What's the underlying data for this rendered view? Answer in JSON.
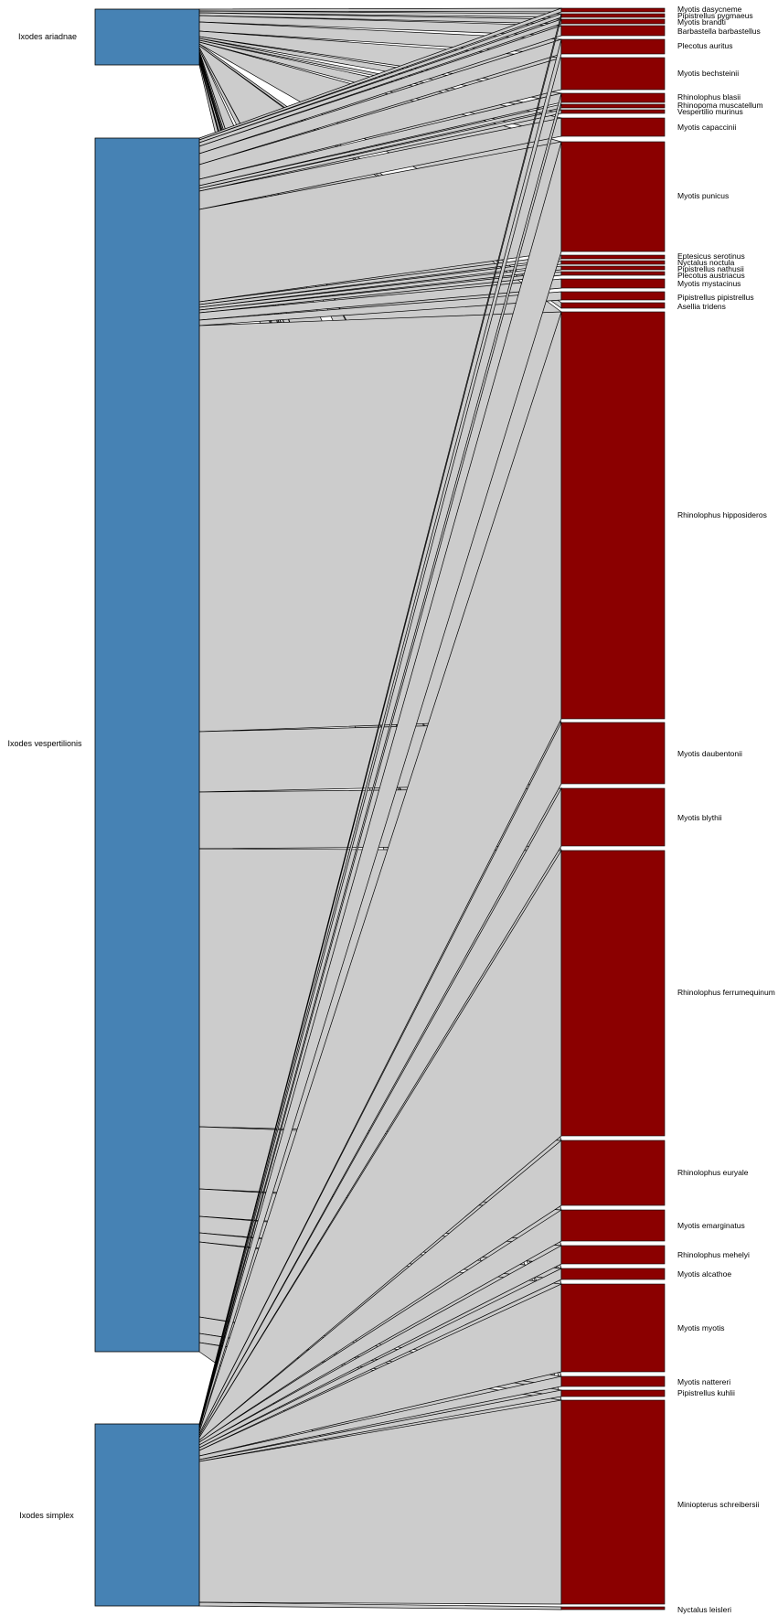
{
  "colors": {
    "higher": "#4682B4",
    "lower": "#8B0000",
    "link_fill": "#CCCCCC",
    "link_stroke": "#000000",
    "background": "#FFFFFF"
  },
  "higher_level": [
    {
      "id": "h0",
      "name": "Ixodes ariadnae"
    },
    {
      "id": "h1",
      "name": "Ixodes vespertilionis"
    },
    {
      "id": "h2",
      "name": "Ixodes simplex"
    }
  ],
  "lower_level": [
    {
      "id": "l0",
      "name": "Myotis dasycneme"
    },
    {
      "id": "l1",
      "name": "Pipistrellus pygmaeus"
    },
    {
      "id": "l2",
      "name": "Myotis brandti"
    },
    {
      "id": "l3",
      "name": "Barbastella barbastellus"
    },
    {
      "id": "l4",
      "name": "Plecotus auritus"
    },
    {
      "id": "l5",
      "name": "Myotis bechsteinii"
    },
    {
      "id": "l6",
      "name": "Rhinolophus blasii"
    },
    {
      "id": "l7",
      "name": "Rhinopoma muscatellum"
    },
    {
      "id": "l8",
      "name": "Vespertilio murinus"
    },
    {
      "id": "l9",
      "name": "Myotis capaccinii"
    },
    {
      "id": "l10",
      "name": "Myotis punicus"
    },
    {
      "id": "l11",
      "name": "Eptesicus serotinus"
    },
    {
      "id": "l12",
      "name": "Nyctalus noctula"
    },
    {
      "id": "l13",
      "name": "Pipistrellus nathusii"
    },
    {
      "id": "l14",
      "name": "Plecotus austriacus"
    },
    {
      "id": "l15",
      "name": "Myotis mystacinus"
    },
    {
      "id": "l16",
      "name": "Pipistrellus pipistrellus"
    },
    {
      "id": "l17",
      "name": "Asellia tridens"
    },
    {
      "id": "l18",
      "name": "Rhinolophus hipposideros"
    },
    {
      "id": "l19",
      "name": "Myotis daubentonii"
    },
    {
      "id": "l20",
      "name": "Myotis blythii"
    },
    {
      "id": "l21",
      "name": "Rhinolophus ferrumequinum"
    },
    {
      "id": "l22",
      "name": "Rhinolophus euryale"
    },
    {
      "id": "l23",
      "name": "Myotis emarginatus"
    },
    {
      "id": "l24",
      "name": "Rhinolophus mehelyi"
    },
    {
      "id": "l25",
      "name": "Myotis alcathoe"
    },
    {
      "id": "l26",
      "name": "Myotis myotis"
    },
    {
      "id": "l27",
      "name": "Myotis nattereri"
    },
    {
      "id": "l28",
      "name": "Pipistrellus kuhlii"
    },
    {
      "id": "l29",
      "name": "Miniopterus schreibersii"
    },
    {
      "id": "l30",
      "name": "Nyctalus leisleri"
    }
  ]
}
